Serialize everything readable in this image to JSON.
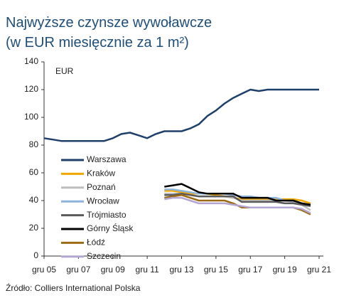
{
  "chart_data": {
    "type": "line",
    "title": "Najwyższe czynsze wywoławcze",
    "subtitle": "(w EUR miesięcznie za 1 m²)",
    "annotation": "EUR",
    "source": "Źródło: Colliers International Polska",
    "categories": [
      "gru 05",
      null,
      null,
      null,
      "gru 07",
      null,
      null,
      null,
      "gru 09",
      null,
      null,
      null,
      "gru 11",
      null,
      null,
      null,
      "gru 13",
      null,
      null,
      null,
      "gru 15",
      null,
      null,
      null,
      "gru 17",
      null,
      null,
      null,
      "gru 19",
      null,
      null,
      null,
      "gru 21"
    ],
    "ylim": [
      0,
      140
    ],
    "yticks": [
      0,
      20,
      40,
      60,
      80,
      100,
      120,
      140
    ],
    "series": [
      {
        "name": "Warszawa",
        "color": "#1f3f6b",
        "values": [
          85,
          84,
          83,
          83,
          83,
          83,
          83,
          83,
          85,
          88,
          89,
          87,
          85,
          88,
          90,
          90,
          90,
          92,
          95,
          101,
          105,
          110,
          114,
          117,
          120,
          119,
          120,
          120,
          120,
          120,
          120,
          120,
          120
        ]
      },
      {
        "name": "Kraków",
        "color": "#f0a800",
        "values": [
          null,
          null,
          null,
          null,
          null,
          null,
          null,
          null,
          null,
          null,
          null,
          null,
          null,
          null,
          47,
          47,
          46,
          45,
          45,
          45,
          44,
          43,
          42,
          41,
          41,
          41,
          41,
          41,
          41,
          41,
          40,
          38,
          null
        ]
      },
      {
        "name": "Poznań",
        "color": "#bdbdbd",
        "values": [
          null,
          null,
          null,
          null,
          null,
          null,
          null,
          null,
          null,
          null,
          null,
          null,
          null,
          null,
          45,
          45,
          45,
          44,
          43,
          43,
          43,
          43,
          42,
          40,
          40,
          40,
          40,
          40,
          40,
          39,
          37,
          33,
          null
        ]
      },
      {
        "name": "Wrocław",
        "color": "#8fb4dc",
        "values": [
          null,
          null,
          null,
          null,
          null,
          null,
          null,
          null,
          null,
          null,
          null,
          null,
          null,
          null,
          48,
          48,
          47,
          46,
          45,
          45,
          45,
          45,
          44,
          43,
          43,
          42,
          42,
          42,
          40,
          40,
          38,
          36,
          null
        ]
      },
      {
        "name": "Trójmiasto",
        "color": "#5a5a5a",
        "values": [
          null,
          null,
          null,
          null,
          null,
          null,
          null,
          null,
          null,
          null,
          null,
          null,
          null,
          null,
          44,
          44,
          45,
          44,
          43,
          43,
          43,
          43,
          43,
          39,
          39,
          39,
          39,
          39,
          38,
          38,
          37,
          36,
          null
        ]
      },
      {
        "name": "Górny Śląsk",
        "color": "#000000",
        "values": [
          null,
          null,
          null,
          null,
          null,
          null,
          null,
          null,
          null,
          null,
          null,
          null,
          null,
          null,
          50,
          51,
          52,
          49,
          46,
          45,
          45,
          45,
          45,
          42,
          42,
          42,
          42,
          40,
          40,
          40,
          38,
          37,
          null
        ]
      },
      {
        "name": "Łódź",
        "color": "#9c6b14",
        "values": [
          null,
          null,
          null,
          null,
          null,
          null,
          null,
          null,
          null,
          null,
          null,
          null,
          null,
          null,
          42,
          43,
          44,
          42,
          40,
          40,
          40,
          40,
          38,
          35,
          35,
          35,
          35,
          35,
          35,
          35,
          33,
          30,
          null
        ]
      },
      {
        "name": "Szczecin",
        "color": "#b4a6d2",
        "values": [
          null,
          null,
          null,
          null,
          null,
          null,
          null,
          null,
          null,
          null,
          null,
          null,
          null,
          null,
          41,
          42,
          42,
          40,
          38,
          38,
          38,
          38,
          37,
          36,
          35,
          35,
          35,
          35,
          35,
          35,
          34,
          31,
          null
        ]
      }
    ]
  }
}
